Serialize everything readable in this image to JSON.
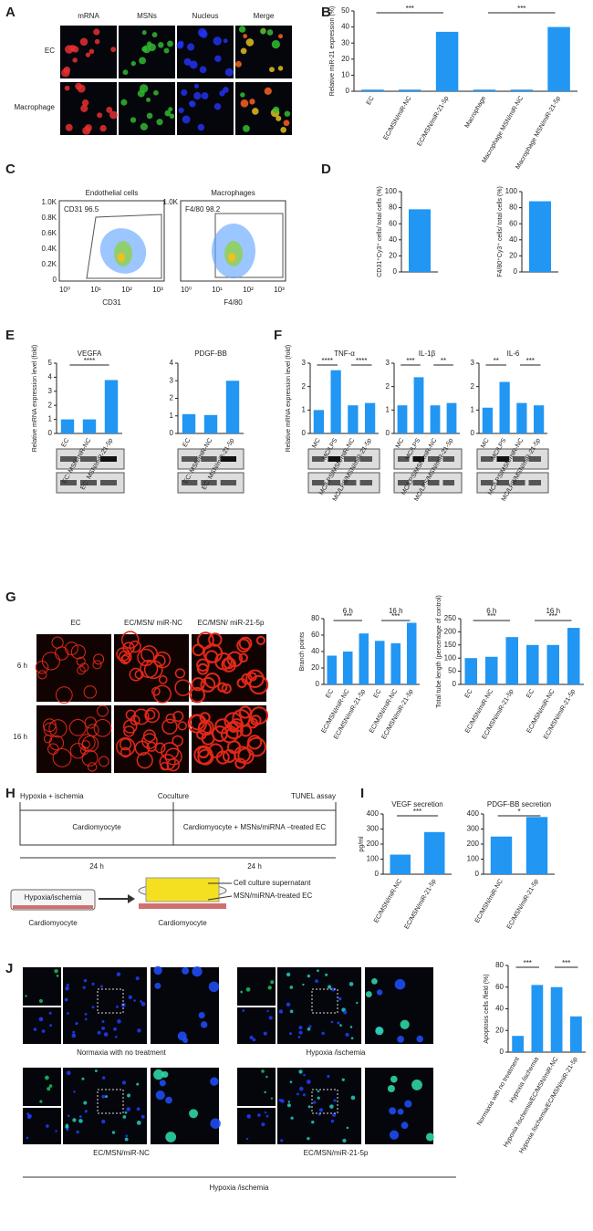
{
  "panel_letters": [
    "A",
    "B",
    "C",
    "D",
    "E",
    "F",
    "G",
    "H",
    "I",
    "J"
  ],
  "A": {
    "columns": [
      "mRNA",
      "MSNs",
      "Nucleus",
      "Merge"
    ],
    "rows": [
      "EC",
      "Macrophage"
    ]
  },
  "C": {
    "plots": [
      {
        "title": "Endothelial cells",
        "gate": "CD31 96.5",
        "xlabel": "CD31"
      },
      {
        "title": "Macrophages",
        "gate": "F4/80 98.2",
        "xlabel": "F4/80"
      }
    ],
    "yticks": [
      "1.0K",
      "0.8K",
      "0.6K",
      "0.4K",
      "0.2K",
      "0"
    ],
    "xticks": [
      "10⁰",
      "10¹",
      "10²",
      "10³"
    ]
  },
  "G_images": {
    "columns": [
      "EC",
      "EC/MSN/ miR-NC",
      "EC/MSN/ miR-21-5p"
    ],
    "rows": [
      "6 h",
      "16 h"
    ]
  },
  "H": {
    "steps": [
      "Hypoxia + ischemia",
      "Coculture",
      "TUNEL assay"
    ],
    "boxes": [
      "Cardiomyocyte",
      "Cardiomyocyte + MSNs/miRNA –treated EC"
    ],
    "durations": [
      "24 h",
      "24 h"
    ],
    "dish_left": "Hypoxia/ischemia",
    "callouts": [
      "Cell culture supernatant",
      "MSN/miRNA-treated EC"
    ],
    "dish_labels": [
      "Cardiomyocyte",
      "Cardiomyocyte"
    ]
  },
  "J_images": {
    "labels": [
      "Normaxia with no treatment",
      "Hypoxia /ischemia",
      "EC/MSN/miR-NC",
      "EC/MSN/miR-21-5p"
    ],
    "footer": "Hypoxia /ischemia"
  },
  "charts": {
    "B": {
      "type": "bar",
      "ylabel": "Relative miR-21 expression (%)",
      "ylim": [
        0,
        50
      ],
      "yticks": [
        0,
        10,
        20,
        30,
        40,
        50
      ],
      "categories": [
        "EC",
        "EC/MSN/miR-NC",
        "EC/MSN/miR-21-5p",
        "Macrophage",
        "Macrophage MSN/miR-NC",
        "Macrophage MSN/miR-21-5p"
      ],
      "values": [
        1,
        1,
        37,
        1,
        1,
        40
      ],
      "color": "#2196f3",
      "annotations": [
        "***",
        "***"
      ]
    },
    "D1": {
      "type": "bar",
      "ylabel": "CD31⁺Cy3⁺ cells/ total cells (%)",
      "ylim": [
        0,
        100
      ],
      "yticks": [
        0,
        20,
        40,
        60,
        80,
        100
      ],
      "categories": [
        null
      ],
      "values": [
        78
      ],
      "color": "#2196f3"
    },
    "D2": {
      "type": "bar",
      "ylabel": "F4/80⁺Cy3⁺ cells/ total cells (%)",
      "ylim": [
        0,
        100
      ],
      "yticks": [
        0,
        20,
        40,
        60,
        80,
        100
      ],
      "categories": [
        null
      ],
      "values": [
        88
      ],
      "color": "#2196f3"
    },
    "E1": {
      "type": "bar",
      "title": "VEGFA",
      "ylabel": "Relative mRNA expression level (fold)",
      "ylim": [
        0,
        5
      ],
      "yticks": [
        0,
        1,
        2,
        3,
        4,
        5
      ],
      "categories": [
        "EC",
        "EC: MSN/miR-NC",
        "EC: MSN/miR-21-5p"
      ],
      "values": [
        1,
        1,
        3.8
      ],
      "color": "#2196f3",
      "annotations": [
        "****"
      ]
    },
    "E2": {
      "type": "bar",
      "title": "PDGF-BB",
      "ylim": [
        0,
        4
      ],
      "yticks": [
        0,
        1,
        2,
        3,
        4
      ],
      "categories": [
        "EC",
        "EC: MSN/miR-NC",
        "EC: MSN/miR-21-5p"
      ],
      "values": [
        1.1,
        1.05,
        3
      ],
      "color": "#2196f3"
    },
    "F1": {
      "type": "bar",
      "title": "TNF-α",
      "ylabel": "Relative mRNA expression level (fold)",
      "ylim": [
        0,
        3
      ],
      "yticks": [
        0,
        1,
        2,
        3
      ],
      "categories": [
        "MC",
        "MC/LPS",
        "MC/LPS/MSN/miR-NC",
        "MC/LPS/MSN/miR-21-5p"
      ],
      "values": [
        1,
        2.7,
        1.2,
        1.3
      ],
      "color": "#2196f3",
      "annotations": [
        "****",
        "****"
      ]
    },
    "F2": {
      "type": "bar",
      "title": "IL-1β",
      "ylim": [
        0,
        3
      ],
      "yticks": [
        0,
        1,
        2,
        3
      ],
      "categories": [
        "MC",
        "MC/LPS",
        "MC/LPS/MSN/miR-NC",
        "MC/LPS/MSN/miR-21-5p"
      ],
      "values": [
        1.2,
        2.4,
        1.2,
        1.3
      ],
      "color": "#2196f3",
      "annotations": [
        "***",
        "**"
      ]
    },
    "F3": {
      "type": "bar",
      "title": "IL-6",
      "ylim": [
        0,
        3
      ],
      "yticks": [
        0,
        1,
        2,
        3
      ],
      "categories": [
        "MC",
        "MC/LPS",
        "MC/LPS/MSN/miR-NC",
        "MC/LPS/MSN/miR-21-5p"
      ],
      "values": [
        1.1,
        2.2,
        1.3,
        1.2
      ],
      "color": "#2196f3",
      "annotations": [
        "**",
        "***"
      ]
    },
    "G1": {
      "type": "bar",
      "ylabel": "Branch points",
      "ylim": [
        0,
        80
      ],
      "yticks": [
        0,
        20,
        40,
        60,
        80
      ],
      "groups": [
        "6 h",
        "16 h"
      ],
      "categories": [
        "EC",
        "EC/MSN/miR-NC",
        "EC/MSN/miR-21-5p",
        "EC",
        "EC/MSN/miR-NC",
        "EC/MSN/miR-21-5p"
      ],
      "values": [
        35,
        40,
        62,
        53,
        50,
        75
      ],
      "color": "#2196f3",
      "annotations": [
        "***",
        "***"
      ]
    },
    "G2": {
      "type": "bar",
      "ylabel": "Total tube length (percentage of control)",
      "ylim": [
        0,
        250
      ],
      "yticks": [
        0,
        50,
        100,
        150,
        200,
        250
      ],
      "groups": [
        "6 h",
        "16 h"
      ],
      "categories": [
        "EC",
        "EC/MSN/miR-NC",
        "EC/MSN/miR-21-5p",
        "EC",
        "EC/MSN/miR-NC",
        "EC/MSN/miR-21-5p"
      ],
      "values": [
        100,
        105,
        180,
        150,
        150,
        215
      ],
      "color": "#2196f3",
      "annotations": [
        "***",
        "***"
      ]
    },
    "I1": {
      "type": "bar",
      "title": "VEGF secretion",
      "ylabel": "pg/ml",
      "ylim": [
        0,
        400
      ],
      "yticks": [
        0,
        100,
        200,
        300,
        400
      ],
      "categories": [
        "EC/MSN/miR-NC",
        "EC/MSN/miR-21-5p"
      ],
      "values": [
        130,
        280
      ],
      "color": "#2196f3",
      "annotations": [
        "***"
      ]
    },
    "I2": {
      "type": "bar",
      "title": "PDGF-BB secretion",
      "ylim": [
        0,
        400
      ],
      "yticks": [
        0,
        100,
        200,
        300,
        400
      ],
      "categories": [
        "EC/MSN/miR-NC",
        "EC/MSN/miR-21-5p"
      ],
      "values": [
        250,
        380
      ],
      "color": "#2196f3",
      "annotations": [
        "*"
      ]
    },
    "J": {
      "type": "bar",
      "ylabel": "Apoptosis cells /field (%)",
      "ylim": [
        0,
        80
      ],
      "yticks": [
        0,
        20,
        40,
        60,
        80
      ],
      "categories": [
        "Normaxia with no treatment",
        "Hypoxia /ischemia",
        "Hypoxia /ischemia/EC/MSN/miR-NC",
        "Hypoxia /ischemia/EC/MSN/miR-21-5p"
      ],
      "values": [
        15,
        62,
        60,
        33
      ],
      "color": "#2196f3",
      "annotations": [
        "***",
        "***"
      ]
    }
  }
}
